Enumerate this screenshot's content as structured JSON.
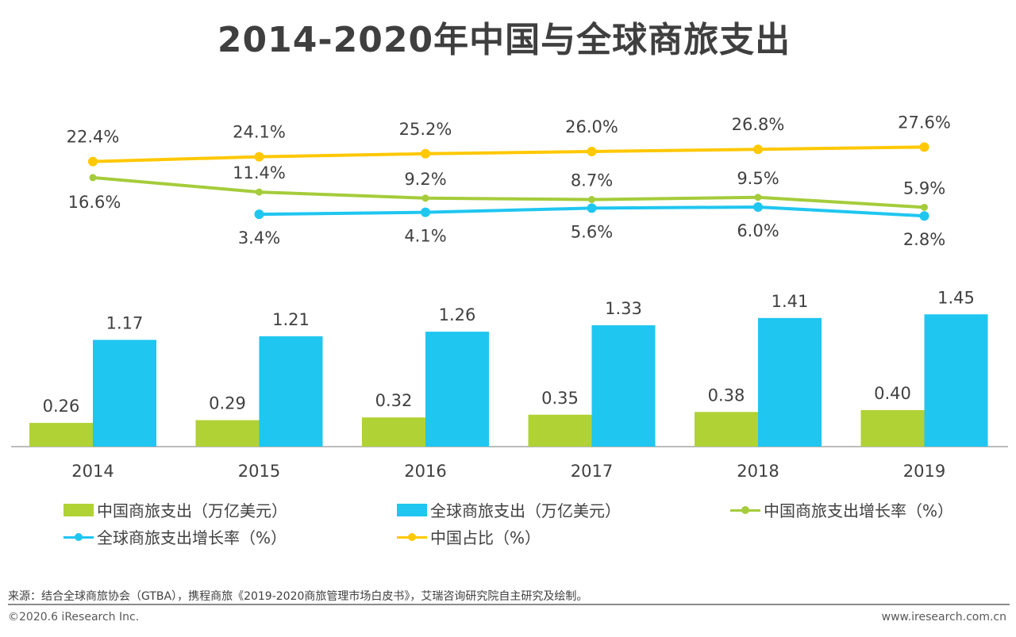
{
  "chart_data": {
    "type": "bar+line",
    "title": "2014-2020年中国与全球商旅支出",
    "categories": [
      "2014",
      "2015",
      "2016",
      "2017",
      "2018",
      "2019"
    ],
    "bar_series": [
      {
        "name": "中国商旅支出（万亿美元）",
        "color": "#b0d235",
        "values": [
          0.26,
          0.29,
          0.32,
          0.35,
          0.38,
          0.4
        ],
        "labels": [
          "0.26",
          "0.29",
          "0.32",
          "0.35",
          "0.38",
          "0.40"
        ]
      },
      {
        "name": "全球商旅支出（万亿美元）",
        "color": "#1fc6f0",
        "values": [
          1.17,
          1.21,
          1.26,
          1.33,
          1.41,
          1.45
        ],
        "labels": [
          "1.17",
          "1.21",
          "1.26",
          "1.33",
          "1.41",
          "1.45"
        ]
      }
    ],
    "line_series": [
      {
        "name": "中国商旅支出增长率（%）",
        "color": "#a5cc3a",
        "values": [
          16.6,
          11.4,
          9.2,
          8.7,
          9.5,
          5.9
        ],
        "labels": [
          "16.6%",
          "11.4%",
          "9.2%",
          "8.7%",
          "9.5%",
          "5.9%"
        ]
      },
      {
        "name": "全球商旅支出增长率（%）",
        "color": "#1fc6f0",
        "values": [
          null,
          3.4,
          4.1,
          5.6,
          6.0,
          2.8
        ],
        "labels": [
          null,
          "3.4%",
          "4.1%",
          "5.6%",
          "6.0%",
          "2.8%"
        ]
      },
      {
        "name": "中国占比（%）",
        "color": "#ffc800",
        "values": [
          22.4,
          24.1,
          25.2,
          26.0,
          26.8,
          27.6
        ],
        "labels": [
          "22.4%",
          "24.1%",
          "25.2%",
          "26.0%",
          "26.8%",
          "27.6%"
        ]
      }
    ],
    "grid": false,
    "legend_position": "bottom"
  },
  "footer": {
    "source": "来源：结合全球商旅协会（GTBA），携程商旅《2019-2020商旅管理市场白皮书》，艾瑞咨询研究院自主研究及绘制。",
    "copyright": "©2020.6 iResearch Inc.",
    "website": "www.iresearch.com.cn"
  }
}
